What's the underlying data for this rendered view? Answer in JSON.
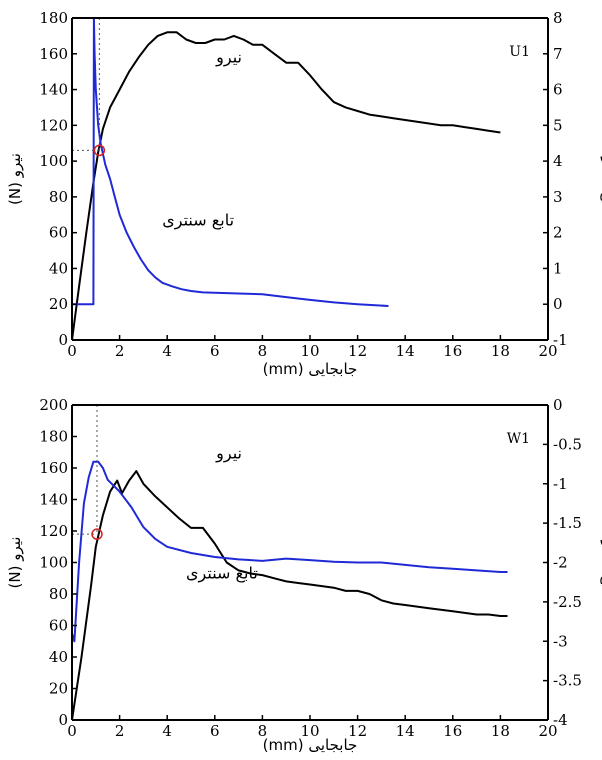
{
  "chart_data": [
    {
      "type": "line",
      "panel_label": "U1",
      "xlabel": "جابجایی (mm)",
      "ylabel": "نیرو (N)",
      "y2label": "تابع سنتری",
      "xlim": [
        0,
        20
      ],
      "xticks": [
        0,
        2,
        4,
        6,
        8,
        10,
        12,
        14,
        16,
        18,
        20
      ],
      "ylim": [
        0,
        180
      ],
      "yticks": [
        0,
        20,
        40,
        60,
        80,
        100,
        120,
        140,
        160,
        180
      ],
      "y2lim": [
        -1,
        8
      ],
      "y2ticks": [
        -1,
        0,
        1,
        2,
        3,
        4,
        5,
        6,
        7,
        8
      ],
      "series": [
        {
          "name": "نیرو",
          "axis": "left",
          "color": "#000000",
          "x": [
            0,
            0.3,
            0.6,
            0.9,
            1.1,
            1.3,
            1.6,
            2.0,
            2.4,
            2.8,
            3.2,
            3.6,
            4.0,
            4.4,
            4.8,
            5.2,
            5.6,
            6.0,
            6.4,
            6.8,
            7.2,
            7.6,
            8.0,
            8.5,
            9.0,
            9.5,
            10.0,
            10.5,
            11.0,
            11.5,
            12.0,
            12.5,
            13.0,
            13.5,
            14.0,
            14.5,
            15.0,
            15.5,
            16.0,
            16.5,
            17.0,
            17.5,
            18.0
          ],
          "y": [
            0,
            30,
            60,
            88,
            105,
            118,
            130,
            140,
            150,
            158,
            165,
            170,
            172,
            172,
            168,
            166,
            166,
            168,
            168,
            170,
            168,
            165,
            165,
            160,
            155,
            155,
            148,
            140,
            133,
            130,
            128,
            126,
            125,
            124,
            123,
            122,
            121,
            120,
            120,
            119,
            118,
            117,
            116
          ]
        },
        {
          "name": "تابع سنتری",
          "axis": "right",
          "color": "#1f2ad6",
          "x": [
            0,
            0.9,
            0.92,
            0.95,
            1.0,
            1.1,
            1.2,
            1.4,
            1.6,
            1.8,
            2.0,
            2.3,
            2.6,
            2.9,
            3.2,
            3.5,
            3.8,
            4.2,
            4.6,
            5.0,
            5.5,
            6.0,
            7.0,
            8.0,
            9.0,
            10.0,
            11.0,
            12.0,
            13.3
          ],
          "y": [
            0,
            0,
            8.0,
            7.0,
            6.0,
            5.0,
            4.5,
            3.9,
            3.5,
            3.0,
            2.5,
            2.0,
            1.6,
            1.25,
            0.95,
            0.75,
            0.6,
            0.5,
            0.42,
            0.37,
            0.33,
            0.32,
            0.3,
            0.28,
            0.2,
            0.12,
            0.05,
            0.0,
            -0.05
          ]
        }
      ],
      "series_labels": [
        {
          "series": "نیرو",
          "text": "نیرو",
          "x": 6.6,
          "y": 155
        },
        {
          "series": "تابع سنتری",
          "text": "تابع سنتری",
          "x": 5.3,
          "y": 2.2
        }
      ],
      "marker": {
        "x": 1.15,
        "y": 106,
        "color": "#d22222"
      }
    },
    {
      "type": "line",
      "panel_label": "W1",
      "xlabel": "جابجایی (mm)",
      "ylabel": "نیرو (N)",
      "y2label": "تابع سنتری",
      "xlim": [
        0,
        20
      ],
      "xticks": [
        0,
        2,
        4,
        6,
        8,
        10,
        12,
        14,
        16,
        18,
        20
      ],
      "ylim": [
        0,
        200
      ],
      "yticks": [
        0,
        20,
        40,
        60,
        80,
        100,
        120,
        140,
        160,
        180,
        200
      ],
      "y2lim": [
        -4,
        0
      ],
      "y2ticks": [
        -4,
        -3.5,
        -3,
        -2.5,
        -2,
        -1.5,
        -1,
        -0.5,
        0
      ],
      "series": [
        {
          "name": "نیرو",
          "axis": "left",
          "color": "#000000",
          "x": [
            0,
            0.4,
            0.8,
            1.0,
            1.3,
            1.6,
            1.9,
            2.1,
            2.4,
            2.7,
            3.0,
            3.5,
            4.0,
            4.5,
            5.0,
            5.5,
            6.0,
            6.5,
            7.0,
            7.5,
            8.0,
            8.5,
            9.0,
            9.5,
            10.0,
            10.5,
            11.0,
            11.5,
            12.0,
            12.5,
            13.0,
            13.5,
            14.0,
            14.5,
            15.0,
            15.5,
            16.0,
            16.5,
            17.0,
            17.5,
            18.0,
            18.3
          ],
          "y": [
            0,
            40,
            85,
            110,
            130,
            145,
            152,
            144,
            152,
            158,
            150,
            142,
            135,
            128,
            122,
            122,
            112,
            100,
            95,
            93,
            92,
            90,
            88,
            87,
            86,
            85,
            84,
            82,
            82,
            80,
            76,
            74,
            73,
            72,
            71,
            70,
            69,
            68,
            67,
            67,
            66,
            66
          ]
        },
        {
          "name": "تابع سنتری",
          "axis": "right",
          "color": "#1f2ad6",
          "x": [
            0,
            0.1,
            0.3,
            0.5,
            0.7,
            0.9,
            1.1,
            1.3,
            1.5,
            2.0,
            2.5,
            3.0,
            3.5,
            4.0,
            5.0,
            6.0,
            7.0,
            8.0,
            9.0,
            10.0,
            11.0,
            12.0,
            13.0,
            14.0,
            15.0,
            16.0,
            17.0,
            18.0,
            18.3
          ],
          "y": [
            -2.9,
            -3.0,
            -2.0,
            -1.25,
            -0.92,
            -0.72,
            -0.72,
            -0.8,
            -0.95,
            -1.1,
            -1.3,
            -1.55,
            -1.7,
            -1.8,
            -1.88,
            -1.93,
            -1.96,
            -1.98,
            -1.95,
            -1.97,
            -1.99,
            -2.0,
            -2.0,
            -2.03,
            -2.06,
            -2.08,
            -2.1,
            -2.12,
            -2.12
          ]
        }
      ],
      "series_labels": [
        {
          "series": "نیرو",
          "text": "نیرو",
          "x": 6.6,
          "y": 166
        },
        {
          "series": "تابع سنتری",
          "text": "تابع سنتری",
          "x": 6.3,
          "y": -2.2
        }
      ],
      "marker": {
        "x": 1.05,
        "y": 118,
        "color": "#d22222"
      }
    }
  ]
}
